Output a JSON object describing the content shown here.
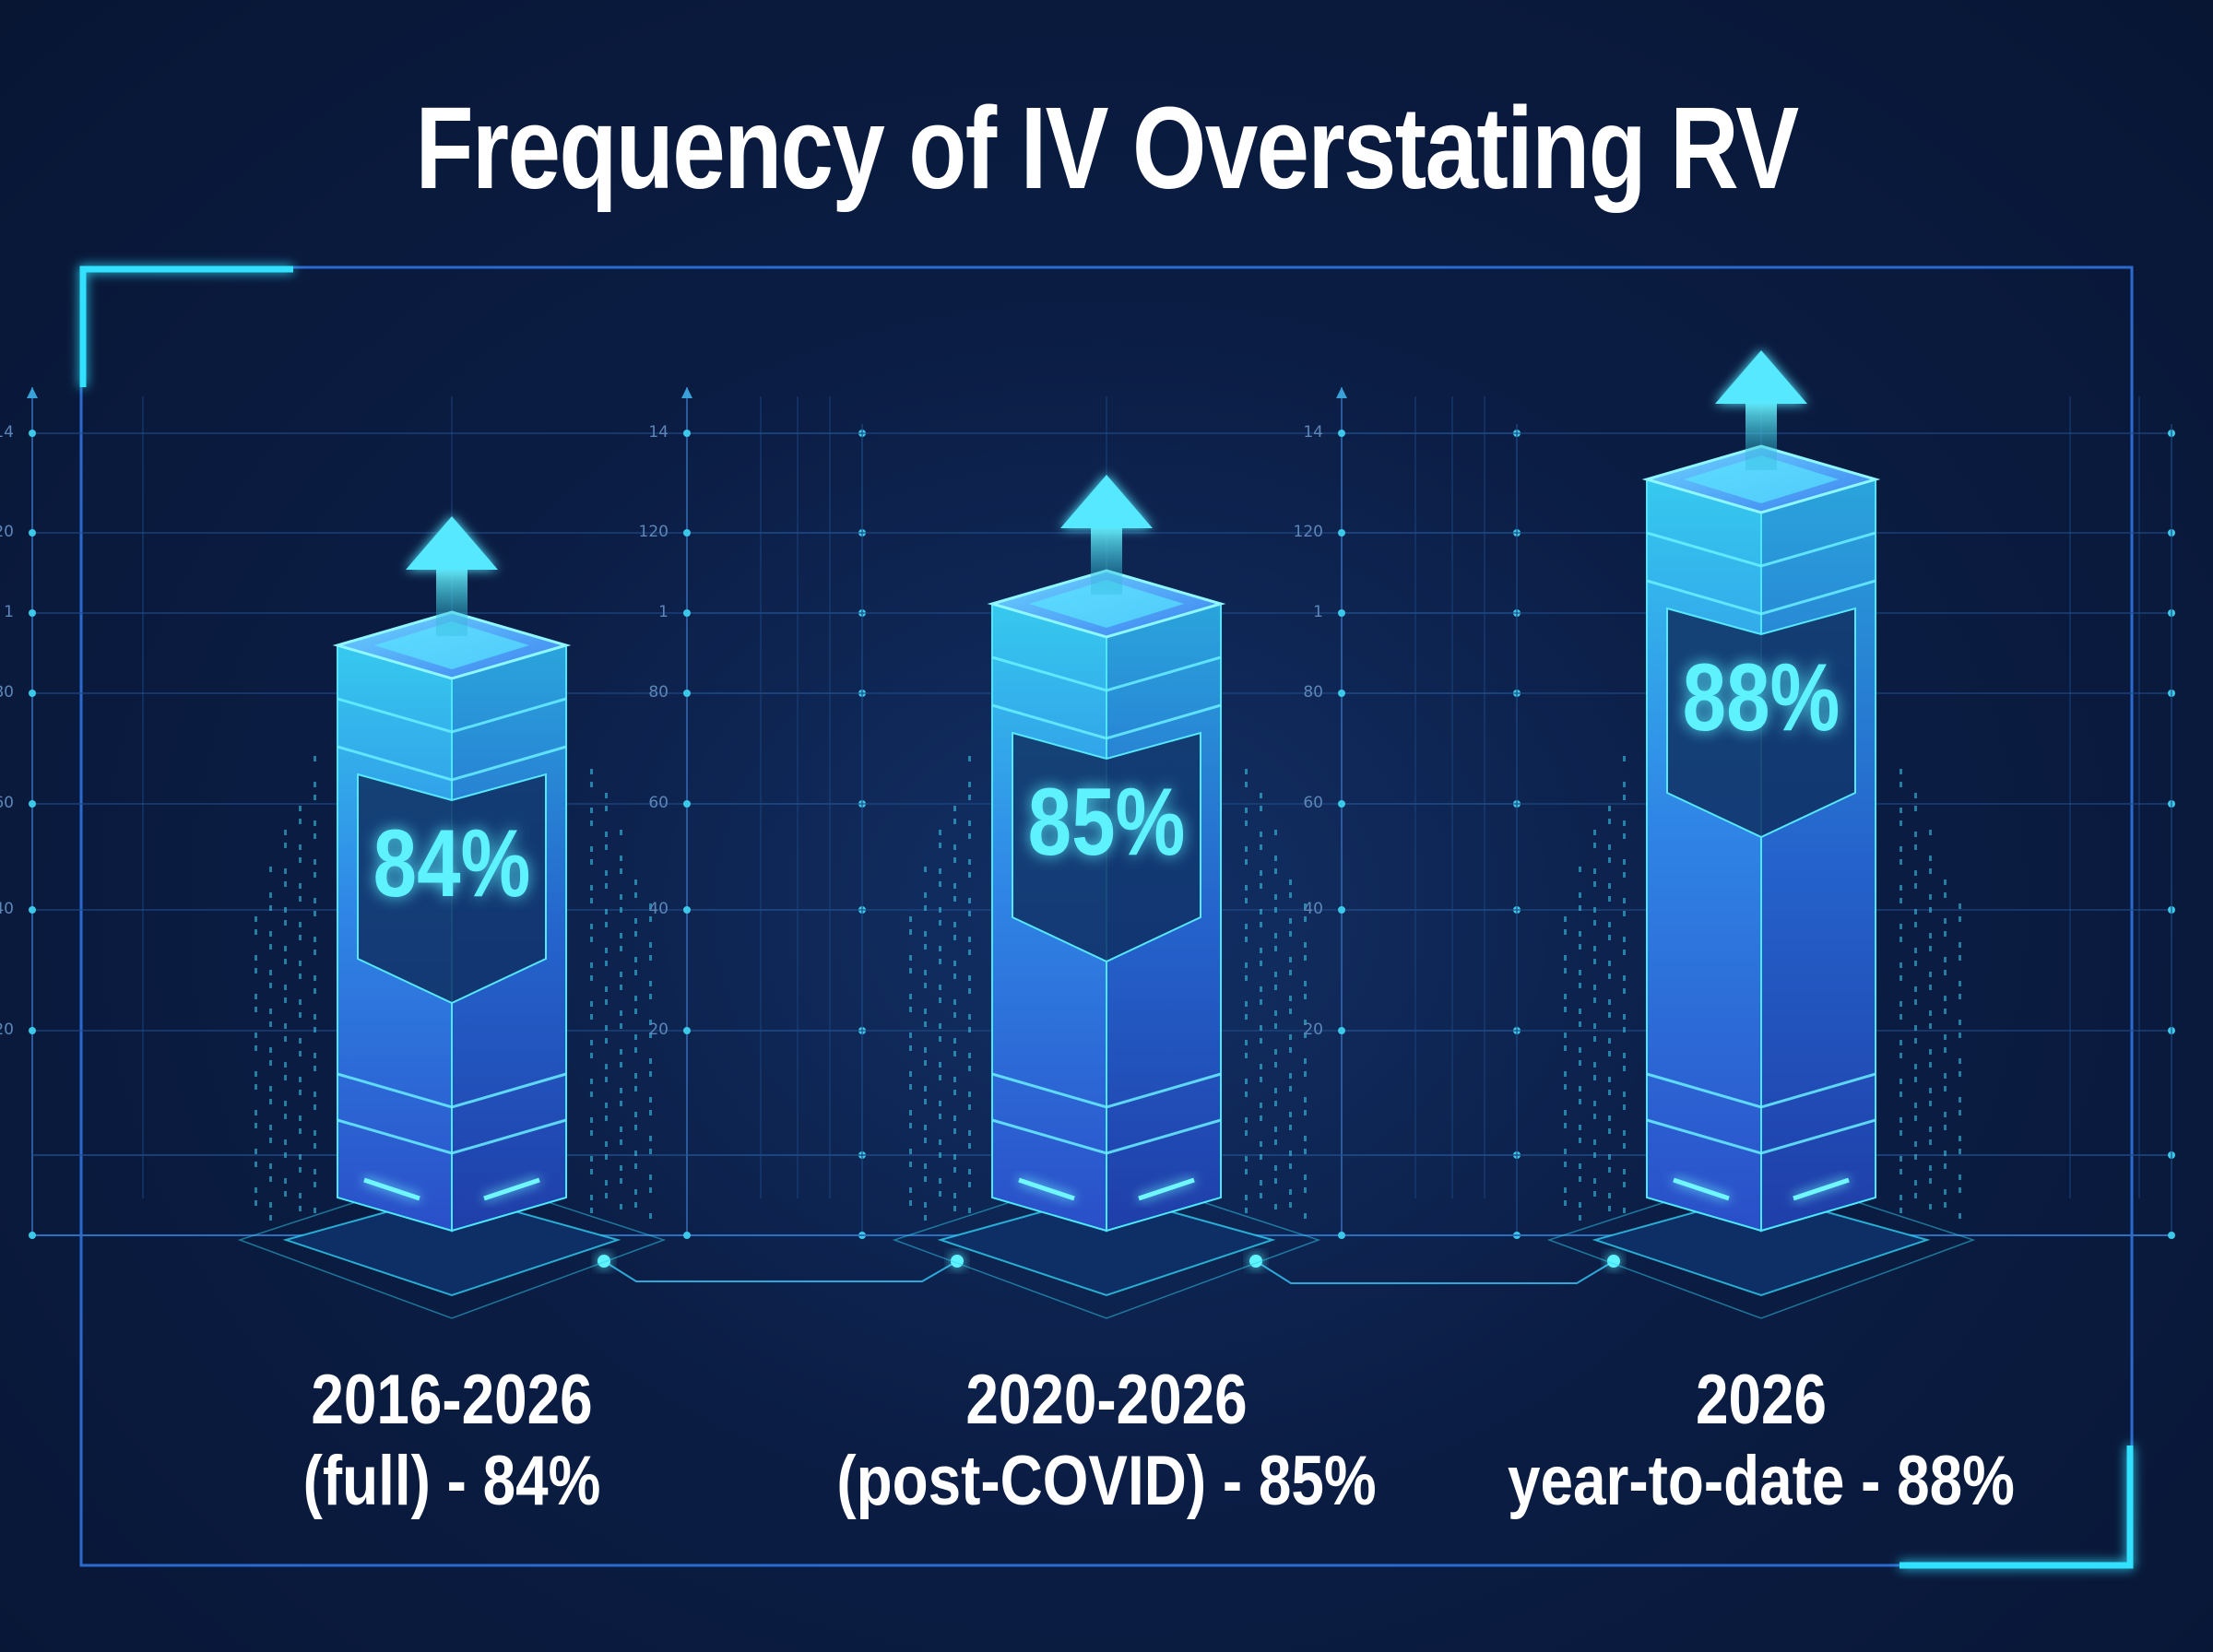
{
  "chart_data": {
    "type": "bar",
    "title": "Frequency of IV Overstating RV",
    "categories": [
      "2016-2026",
      "2020-2026",
      "2026"
    ],
    "category_sublabels": [
      "(full) - 84%",
      "(post-COVID) - 85%",
      "year-to-date - 88%"
    ],
    "values": [
      84,
      85,
      88
    ],
    "value_labels": [
      "84%",
      "85%",
      "88%"
    ],
    "unit": "%",
    "tick_labels": [
      "14",
      "120",
      "1",
      "80",
      "60",
      "40",
      "20"
    ],
    "grid": true,
    "legend": "none"
  },
  "colors": {
    "background": "#0b1d44",
    "accent": "#2ee6ff",
    "bar_blue": "#2f6fe0",
    "bar_cyan": "#35d8e8",
    "text": "#ffffff"
  }
}
